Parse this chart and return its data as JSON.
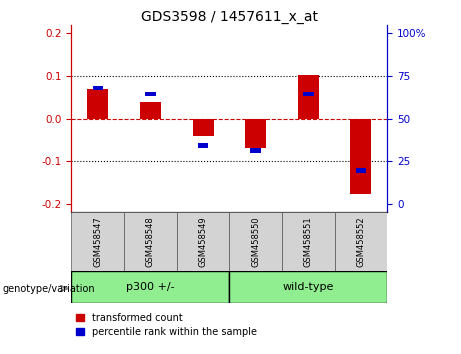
{
  "title": "GDS3598 / 1457611_x_at",
  "samples": [
    "GSM458547",
    "GSM458548",
    "GSM458549",
    "GSM458550",
    "GSM458551",
    "GSM458552"
  ],
  "red_bars": [
    0.07,
    0.038,
    -0.04,
    -0.07,
    0.103,
    -0.178
  ],
  "blue_markers": [
    0.072,
    0.058,
    -0.063,
    -0.075,
    0.058,
    -0.122
  ],
  "ylim": [
    -0.22,
    0.22
  ],
  "yticks_left": [
    -0.2,
    -0.1,
    0.0,
    0.1,
    0.2
  ],
  "yticks_right": [
    0,
    25,
    50,
    75,
    100
  ],
  "group_labels": [
    "p300 +/-",
    "wild-type"
  ],
  "group_colors": [
    "#90EE90",
    "#90EE90"
  ],
  "group_starts": [
    0,
    3
  ],
  "group_ends": [
    3,
    6
  ],
  "bar_width": 0.4,
  "red_color": "#CC0000",
  "blue_color": "#0000CC",
  "zero_line_color": "#CC0000",
  "grid_color": "black",
  "label_transformed": "transformed count",
  "label_percentile": "percentile rank within the sample",
  "background_plot": "#FFFFFF",
  "background_label": "#D3D3D3",
  "left_axis_color": "#CC0000",
  "right_axis_color": "#0000CC",
  "arrow_color": "#888888"
}
